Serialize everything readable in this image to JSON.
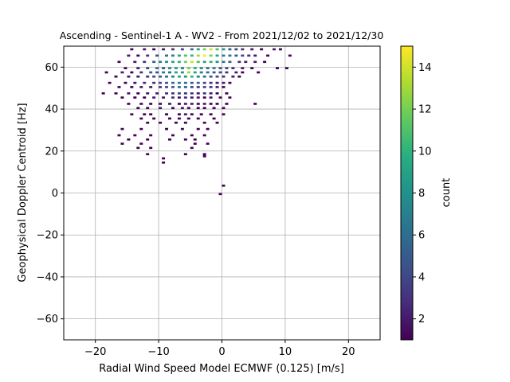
{
  "chart_data": {
    "type": "heatmap",
    "title": "Ascending - Sentinel-1 A - WV2 - From 2021/12/02 to 2021/12/30",
    "xlabel": "Radial Wind Speed Model ECMWF (0.125) [m/s]",
    "ylabel": "Geophysical Doppler Centroid [Hz]",
    "xlim": [
      -25,
      25
    ],
    "ylim": [
      -70,
      70
    ],
    "xticks": [
      -20,
      -10,
      0,
      10,
      20
    ],
    "yticks": [
      -60,
      -40,
      -20,
      0,
      20,
      40,
      60
    ],
    "grid": true,
    "bin_size": {
      "x": 0.5,
      "y": 1
    },
    "colorbar": {
      "label": "count",
      "range": [
        1,
        15
      ],
      "ticks": [
        2,
        4,
        6,
        8,
        10,
        12,
        14
      ],
      "colormap": "viridis"
    },
    "bins": [
      [
        -14.5,
        68,
        1
      ],
      [
        -12.5,
        68,
        2
      ],
      [
        -11,
        68,
        1
      ],
      [
        -9.5,
        68,
        2
      ],
      [
        -8,
        68,
        3
      ],
      [
        -6.5,
        68,
        4
      ],
      [
        -5,
        68,
        6
      ],
      [
        -4,
        68,
        9
      ],
      [
        -3,
        68,
        12
      ],
      [
        -2,
        68,
        14
      ],
      [
        -1,
        68,
        11
      ],
      [
        0,
        68,
        8
      ],
      [
        1,
        68,
        5
      ],
      [
        2,
        68,
        4
      ],
      [
        3,
        68,
        3
      ],
      [
        4.5,
        68,
        2
      ],
      [
        6,
        68,
        1
      ],
      [
        8,
        68,
        2
      ],
      [
        9,
        68,
        1
      ],
      [
        -15,
        65,
        2
      ],
      [
        -13.5,
        65,
        1
      ],
      [
        -12,
        65,
        3
      ],
      [
        -10.5,
        65,
        4
      ],
      [
        -9,
        65,
        6
      ],
      [
        -8,
        65,
        7
      ],
      [
        -7,
        65,
        9
      ],
      [
        -6,
        65,
        11
      ],
      [
        -5,
        65,
        10
      ],
      [
        -4,
        65,
        13
      ],
      [
        -3,
        65,
        15
      ],
      [
        -2,
        65,
        12
      ],
      [
        -1,
        65,
        9
      ],
      [
        0,
        65,
        7
      ],
      [
        1,
        65,
        6
      ],
      [
        2,
        65,
        5
      ],
      [
        3,
        65,
        4
      ],
      [
        4,
        65,
        3
      ],
      [
        5,
        65,
        2
      ],
      [
        7,
        65,
        1
      ],
      [
        10.5,
        65,
        1
      ],
      [
        -16.5,
        62,
        1
      ],
      [
        -14,
        62,
        2
      ],
      [
        -12.5,
        62,
        3
      ],
      [
        -11,
        62,
        5
      ],
      [
        -10,
        62,
        7
      ],
      [
        -9,
        62,
        8
      ],
      [
        -8,
        62,
        9
      ],
      [
        -7,
        62,
        10
      ],
      [
        -6,
        62,
        12
      ],
      [
        -5,
        62,
        14
      ],
      [
        -4,
        62,
        11
      ],
      [
        -3,
        62,
        9
      ],
      [
        -2,
        62,
        10
      ],
      [
        -1,
        62,
        8
      ],
      [
        0,
        62,
        6
      ],
      [
        1,
        62,
        5
      ],
      [
        2.5,
        62,
        3
      ],
      [
        3.5,
        62,
        2
      ],
      [
        5,
        62,
        2
      ],
      [
        6.5,
        62,
        1
      ],
      [
        -15.5,
        59,
        1
      ],
      [
        -13.5,
        59,
        2
      ],
      [
        -12,
        59,
        4
      ],
      [
        -10.5,
        59,
        6
      ],
      [
        -9.5,
        59,
        5
      ],
      [
        -8.5,
        59,
        8
      ],
      [
        -7.5,
        59,
        9
      ],
      [
        -6.5,
        59,
        7
      ],
      [
        -5.5,
        59,
        12
      ],
      [
        -4.5,
        59,
        10
      ],
      [
        -3.5,
        59,
        8
      ],
      [
        -2.5,
        59,
        6
      ],
      [
        -1.5,
        59,
        7
      ],
      [
        -0.5,
        59,
        5
      ],
      [
        0.5,
        59,
        4
      ],
      [
        1.5,
        59,
        3
      ],
      [
        3,
        59,
        2
      ],
      [
        4.5,
        59,
        1
      ],
      [
        8.5,
        59,
        1
      ],
      [
        10,
        59,
        1
      ],
      [
        -18.5,
        57,
        1
      ],
      [
        -16,
        57,
        2
      ],
      [
        -14.5,
        57,
        1
      ],
      [
        -13,
        57,
        3
      ],
      [
        -11.5,
        57,
        5
      ],
      [
        -10.5,
        57,
        4
      ],
      [
        -9.5,
        57,
        7
      ],
      [
        -8.5,
        57,
        6
      ],
      [
        -7.5,
        57,
        9
      ],
      [
        -6.5,
        57,
        8
      ],
      [
        -5.5,
        57,
        13
      ],
      [
        -4.5,
        57,
        9
      ],
      [
        -3.5,
        57,
        7
      ],
      [
        -2.5,
        57,
        6
      ],
      [
        -1.5,
        57,
        5
      ],
      [
        -0.5,
        57,
        4
      ],
      [
        0.5,
        57,
        3
      ],
      [
        2,
        57,
        2
      ],
      [
        3,
        57,
        1
      ],
      [
        5.5,
        57,
        1
      ],
      [
        -17,
        55,
        1
      ],
      [
        -15,
        55,
        2
      ],
      [
        -13.5,
        55,
        2
      ],
      [
        -12,
        55,
        3
      ],
      [
        -11,
        55,
        4
      ],
      [
        -10,
        55,
        5
      ],
      [
        -9,
        55,
        6
      ],
      [
        -8,
        55,
        7
      ],
      [
        -7,
        55,
        9
      ],
      [
        -6,
        55,
        8
      ],
      [
        -5,
        55,
        10
      ],
      [
        -4,
        55,
        7
      ],
      [
        -3,
        55,
        6
      ],
      [
        -2,
        55,
        5
      ],
      [
        -1,
        55,
        4
      ],
      [
        0,
        55,
        3
      ],
      [
        1.5,
        55,
        2
      ],
      [
        2.5,
        55,
        1
      ],
      [
        -18,
        52,
        1
      ],
      [
        -15.5,
        52,
        1
      ],
      [
        -14,
        52,
        2
      ],
      [
        -12.5,
        52,
        3
      ],
      [
        -11,
        52,
        3
      ],
      [
        -10,
        52,
        4
      ],
      [
        -9,
        52,
        5
      ],
      [
        -8,
        52,
        6
      ],
      [
        -7,
        52,
        7
      ],
      [
        -6,
        52,
        6
      ],
      [
        -5,
        52,
        5
      ],
      [
        -4,
        52,
        6
      ],
      [
        -3,
        52,
        4
      ],
      [
        -2,
        52,
        3
      ],
      [
        -1,
        52,
        2
      ],
      [
        0,
        52,
        2
      ],
      [
        1,
        52,
        1
      ],
      [
        -16.5,
        50,
        1
      ],
      [
        -14.5,
        50,
        1
      ],
      [
        -13,
        50,
        2
      ],
      [
        -11.5,
        50,
        2
      ],
      [
        -10,
        50,
        3
      ],
      [
        -9,
        50,
        4
      ],
      [
        -8,
        50,
        5
      ],
      [
        -7,
        50,
        6
      ],
      [
        -6,
        50,
        5
      ],
      [
        -5,
        50,
        4
      ],
      [
        -4,
        50,
        3
      ],
      [
        -3,
        50,
        4
      ],
      [
        -2,
        50,
        3
      ],
      [
        -1,
        50,
        2
      ],
      [
        0,
        50,
        1
      ],
      [
        -19,
        47,
        1
      ],
      [
        -17,
        47,
        1
      ],
      [
        -15,
        47,
        2
      ],
      [
        -13.5,
        47,
        1
      ],
      [
        -12,
        47,
        2
      ],
      [
        -10.5,
        47,
        2
      ],
      [
        -9,
        47,
        3
      ],
      [
        -8,
        47,
        3
      ],
      [
        -7,
        47,
        4
      ],
      [
        -6,
        47,
        3
      ],
      [
        -5,
        47,
        3
      ],
      [
        -4,
        47,
        2
      ],
      [
        -3,
        47,
        3
      ],
      [
        -2,
        47,
        2
      ],
      [
        -1,
        47,
        1
      ],
      [
        0.5,
        47,
        1
      ],
      [
        -16,
        45,
        1
      ],
      [
        -14,
        45,
        1
      ],
      [
        -12.5,
        45,
        1
      ],
      [
        -11,
        45,
        2
      ],
      [
        -9.5,
        45,
        2
      ],
      [
        -8,
        45,
        3
      ],
      [
        -7,
        45,
        2
      ],
      [
        -6,
        45,
        3
      ],
      [
        -5,
        45,
        2
      ],
      [
        -4,
        45,
        2
      ],
      [
        -3,
        45,
        1
      ],
      [
        -2,
        45,
        2
      ],
      [
        -0.5,
        45,
        1
      ],
      [
        1,
        45,
        1
      ],
      [
        -15,
        42,
        1
      ],
      [
        -13,
        42,
        1
      ],
      [
        -11.5,
        42,
        1
      ],
      [
        -10,
        42,
        1
      ],
      [
        -8.5,
        42,
        2
      ],
      [
        -7,
        42,
        1
      ],
      [
        -6,
        42,
        2
      ],
      [
        -5,
        42,
        2
      ],
      [
        -4,
        42,
        1
      ],
      [
        -3,
        42,
        2
      ],
      [
        -2,
        42,
        1
      ],
      [
        -1,
        42,
        1
      ],
      [
        0.5,
        42,
        1
      ],
      [
        5,
        42,
        1
      ],
      [
        -13.5,
        40,
        1
      ],
      [
        -12,
        40,
        1
      ],
      [
        -10,
        40,
        2
      ],
      [
        -8,
        40,
        1
      ],
      [
        -6.5,
        40,
        2
      ],
      [
        -5.5,
        40,
        1
      ],
      [
        -4,
        40,
        1
      ],
      [
        -3,
        40,
        1
      ],
      [
        -1.5,
        40,
        1
      ],
      [
        0,
        40,
        1
      ],
      [
        -14.5,
        37,
        1
      ],
      [
        -12.5,
        37,
        1
      ],
      [
        -11.5,
        37,
        1
      ],
      [
        -9,
        37,
        1
      ],
      [
        -7,
        37,
        1
      ],
      [
        -6,
        37,
        2
      ],
      [
        -5,
        37,
        1
      ],
      [
        -3.5,
        37,
        1
      ],
      [
        -2,
        37,
        1
      ],
      [
        0,
        37,
        1
      ],
      [
        -13,
        35,
        1
      ],
      [
        -11,
        35,
        1
      ],
      [
        -8.5,
        35,
        1
      ],
      [
        -7,
        35,
        1
      ],
      [
        -5.5,
        35,
        1
      ],
      [
        -4,
        35,
        1
      ],
      [
        -1.5,
        35,
        1
      ],
      [
        -12,
        33,
        1
      ],
      [
        -10,
        33,
        1
      ],
      [
        -7.5,
        33,
        1
      ],
      [
        -6,
        33,
        1
      ],
      [
        -3,
        33,
        1
      ],
      [
        -1,
        33,
        1
      ],
      [
        -16,
        30,
        1
      ],
      [
        -13,
        30,
        1
      ],
      [
        -9,
        30,
        1
      ],
      [
        -6.5,
        30,
        1
      ],
      [
        -4,
        30,
        1
      ],
      [
        -2.5,
        30,
        1
      ],
      [
        -16.5,
        27,
        1
      ],
      [
        -14,
        27,
        1
      ],
      [
        -11.5,
        27,
        1
      ],
      [
        -8,
        27,
        1
      ],
      [
        -5,
        27,
        1
      ],
      [
        -3,
        27,
        1
      ],
      [
        -15,
        25,
        1
      ],
      [
        -12,
        25,
        1
      ],
      [
        -8.5,
        25,
        1
      ],
      [
        -6,
        25,
        1
      ],
      [
        -4.5,
        25,
        1
      ],
      [
        -16,
        23,
        1
      ],
      [
        -13,
        23,
        1
      ],
      [
        -4.5,
        23,
        1
      ],
      [
        -2.5,
        23,
        1
      ],
      [
        -11.5,
        21,
        1
      ],
      [
        -13.5,
        21,
        1
      ],
      [
        -5,
        21,
        1
      ],
      [
        -12,
        18,
        1
      ],
      [
        -6,
        18,
        1
      ],
      [
        -3,
        18,
        1
      ],
      [
        -9.5,
        16,
        1
      ],
      [
        -3,
        17,
        1
      ],
      [
        -9.5,
        14,
        1
      ],
      [
        0,
        3,
        1
      ],
      [
        -0.5,
        -1,
        1
      ]
    ]
  }
}
